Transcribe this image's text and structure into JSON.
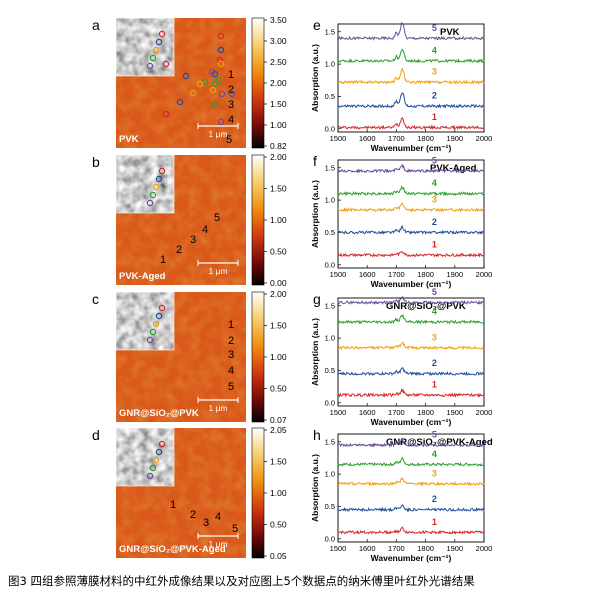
{
  "figure": {
    "caption": "图3 四组参照薄膜材料的中红外成像结果以及对应图上5个数据点的纳米傅里叶红外光谱结果",
    "colors": {
      "c1": "#d62728",
      "c2": "#1f4e9c",
      "c3": "#f0a010",
      "c4": "#2ca02c",
      "c5": "#6a4c9c"
    }
  },
  "images": [
    {
      "letter": "a",
      "label": "PVK",
      "scale": "1 μm",
      "colorbar_ticks": [
        "3.50",
        "3.00",
        "2.50",
        "2.00",
        "1.50",
        "1.00",
        "0.82"
      ],
      "points": [
        "1",
        "2",
        "3",
        "4",
        "5"
      ]
    },
    {
      "letter": "b",
      "label": "PVK-Aged",
      "scale": "1 μm",
      "colorbar_ticks": [
        "2.00",
        "1.50",
        "1.00",
        "0.50",
        "0.00"
      ],
      "points": [
        "1",
        "2",
        "3",
        "4",
        "5"
      ]
    },
    {
      "letter": "c",
      "label": "GNR@SiO₂@PVK",
      "scale": "1 μm",
      "colorbar_ticks": [
        "2.00",
        "1.50",
        "1.00",
        "0.50",
        "0.07"
      ],
      "points": [
        "1",
        "2",
        "3",
        "4",
        "5"
      ]
    },
    {
      "letter": "d",
      "label": "GNR@SiO₂@PVK-Aged",
      "scale": "1 μm",
      "colorbar_ticks": [
        "2.05",
        "1.50",
        "1.00",
        "0.50",
        "0.05"
      ],
      "points": [
        "1",
        "2",
        "3",
        "4",
        "5"
      ]
    }
  ],
  "chart_data": [
    {
      "type": "line",
      "letter": "e",
      "title": "PVK",
      "xlabel": "Wavenumber (cm⁻¹)",
      "ylabel": "Absorption (a.u.)",
      "xlim": [
        1500,
        2000
      ],
      "ylim": [
        -0.05,
        1.62
      ],
      "xticks": [
        "1500",
        "1600",
        "1700",
        "1800",
        "1900",
        "2000"
      ],
      "yticks": [
        "0.0",
        "0.5",
        "1.0",
        "1.5"
      ],
      "series": [
        {
          "name": "1",
          "baseline": 0.02,
          "peak": 0.15
        },
        {
          "name": "2",
          "baseline": 0.35,
          "peak": 0.22
        },
        {
          "name": "3",
          "baseline": 0.72,
          "peak": 0.2
        },
        {
          "name": "4",
          "baseline": 1.05,
          "peak": 0.18
        },
        {
          "name": "5",
          "baseline": 1.4,
          "peak": 0.25
        }
      ]
    },
    {
      "type": "line",
      "letter": "f",
      "title": "PVK-Aged",
      "xlabel": "Wavenumber (cm⁻¹)",
      "ylabel": "Absorption (a.u.)",
      "xlim": [
        1500,
        2000
      ],
      "ylim": [
        -0.05,
        1.62
      ],
      "xticks": [
        "1500",
        "1600",
        "1700",
        "1800",
        "1900",
        "2000"
      ],
      "yticks": [
        "0.0",
        "0.5",
        "1.0",
        "1.5"
      ],
      "series": [
        {
          "name": "1",
          "baseline": 0.15,
          "peak": 0.06
        },
        {
          "name": "2",
          "baseline": 0.5,
          "peak": 0.08
        },
        {
          "name": "3",
          "baseline": 0.85,
          "peak": 0.1
        },
        {
          "name": "4",
          "baseline": 1.1,
          "peak": 0.1
        },
        {
          "name": "5",
          "baseline": 1.45,
          "peak": 0.08
        }
      ]
    },
    {
      "type": "line",
      "letter": "g",
      "title": "GNR@SiO₂@PVK",
      "xlabel": "Wavenumber (cm⁻¹)",
      "ylabel": "Absorption (a.u.)",
      "xlim": [
        1500,
        2000
      ],
      "ylim": [
        -0.05,
        1.62
      ],
      "xticks": [
        "1500",
        "1600",
        "1700",
        "1800",
        "1900",
        "2000"
      ],
      "yticks": [
        "0.0",
        "0.5",
        "1.0",
        "1.5"
      ],
      "series": [
        {
          "name": "1",
          "baseline": 0.12,
          "peak": 0.07
        },
        {
          "name": "2",
          "baseline": 0.45,
          "peak": 0.08
        },
        {
          "name": "3",
          "baseline": 0.85,
          "peak": 0.08
        },
        {
          "name": "4",
          "baseline": 1.25,
          "peak": 0.1
        },
        {
          "name": "5",
          "baseline": 1.55,
          "peak": 0.08
        }
      ]
    },
    {
      "type": "line",
      "letter": "h",
      "title": "GNR@SiO₂@PVK-Aged",
      "xlabel": "Wavenumber (cm⁻¹)",
      "ylabel": "Absorption (a.u.)",
      "xlim": [
        1500,
        2000
      ],
      "ylim": [
        -0.05,
        1.62
      ],
      "xticks": [
        "1500",
        "1600",
        "1700",
        "1800",
        "1900",
        "2000"
      ],
      "yticks": [
        "0.0",
        "0.5",
        "1.0",
        "1.5"
      ],
      "series": [
        {
          "name": "1",
          "baseline": 0.1,
          "peak": 0.06
        },
        {
          "name": "2",
          "baseline": 0.45,
          "peak": 0.07
        },
        {
          "name": "3",
          "baseline": 0.85,
          "peak": 0.08
        },
        {
          "name": "4",
          "baseline": 1.15,
          "peak": 0.09
        },
        {
          "name": "5",
          "baseline": 1.45,
          "peak": 0.07
        }
      ]
    }
  ]
}
